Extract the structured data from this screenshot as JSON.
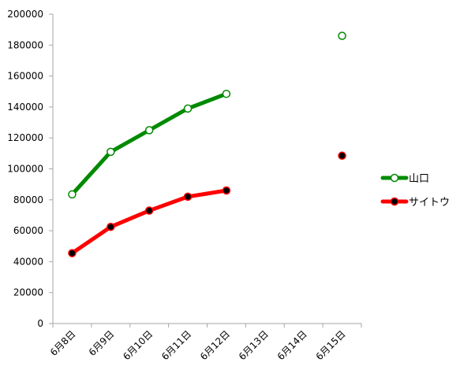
{
  "chart_data": {
    "type": "line",
    "title": "",
    "xlabel": "",
    "ylabel": "",
    "categories": [
      "6月8日",
      "6月9日",
      "6月10日",
      "6月11日",
      "6月12日",
      "6月13日",
      "6月14日",
      "6月15日"
    ],
    "ylim": [
      0,
      200000
    ],
    "yticks": [
      0,
      20000,
      40000,
      60000,
      80000,
      100000,
      120000,
      140000,
      160000,
      180000,
      200000
    ],
    "grid": false,
    "legend_position": "right",
    "series": [
      {
        "name": "山口",
        "color": "#008a00",
        "marker": "open-circle",
        "values": [
          83500,
          111000,
          125000,
          139000,
          148500,
          null,
          null,
          186000
        ]
      },
      {
        "name": "サイトウ",
        "color": "#ff0000",
        "marker": "filled-black-circle",
        "values": [
          45500,
          62500,
          73000,
          82000,
          86000,
          null,
          null,
          108500
        ]
      }
    ]
  }
}
